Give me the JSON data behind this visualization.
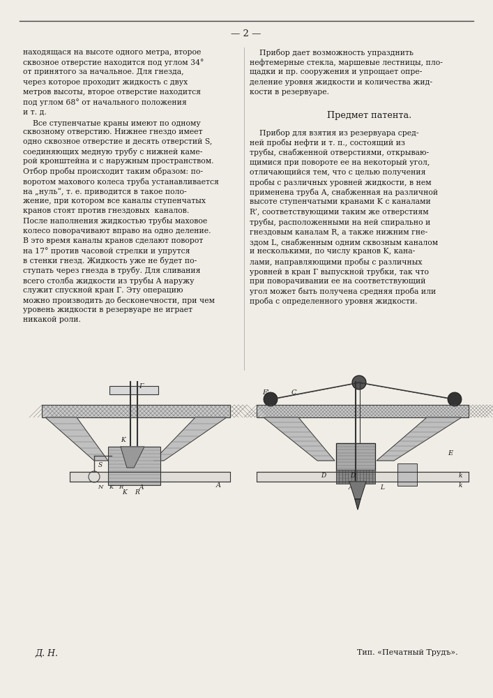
{
  "page_number": "— 2 —",
  "bg": "#f0ede6",
  "tc": "#1a1a1a",
  "left_col": [
    "находящася на высоте одного метра, второе",
    "сквозное отверстие находится под углом 34°",
    "от принятого за начальное. Для гнезда,",
    "через которое проходит жидкость с двух",
    "метров высоты, второе отверстие находится",
    "под углом 68° от начального положения",
    "и т. д.",
    "    Все ступенчатые краны имеют по одному",
    "сквозному отверстию. Нижнее гнездо имеет",
    "одно сквозное отверстие и десять отверстий S,",
    "соединяющих медную трубу с нижней каме-",
    "рой кронштейна и с наружным пространством.",
    "Отбор пробы происходит таким образом: по-",
    "воротом махового колеса труба устанавливается",
    "на „нуль“, т. е. приводится в такое поло-",
    "жение, при котором все каналы ступенчатых",
    "кранов стоят против гнездовых  каналов.",
    "После наполнения жидкостью трубы маховое",
    "колесо поворачивают вправо на одно деление.",
    "В это время каналы кранов сделают поворот",
    "на 17° против часовой стрелки и упрутся",
    "в стенки гнезд. Жидкость уже не будет по-",
    "ступать через гнезда в трубу. Для сливания",
    "всего столба жидкости из трубы A наружу",
    "служит спускной кран Г. Эту операцию",
    "можно производить до бесконечности, при чем",
    "уровень жидкости в резервуаре не играет",
    "никакой роли."
  ],
  "right_col_top": [
    "    Прибор дает возможность упразднить",
    "нефтемерные стекла, маршевые лестницы, пло-",
    "щадки и пр. сооружения и упрощает опре-",
    "деление уровня жидкости и количества жид-",
    "кости в резервуаре."
  ],
  "predmet": "Предмет патента.",
  "right_col_body": [
    "    Прибор для взятия из резервуара сред-",
    "ней пробы нефти и т. п., состоящий из",
    "трубы, снабженной отверстиями, открываю-",
    "щимися при повороте ее на некоторый угол,",
    "отличающийся тем, что с целью получения",
    "пробы с различных уровней жидкости, в нем",
    "применена труба A, снабженная на различной",
    "высоте ступенчатыми кранами K с каналами",
    "R’, соответствующими таким же отверстиям",
    "трубы, расположенными на ней спирально и",
    "гнездовым каналам R, а также нижним гне-",
    "здом L, снабженным одним сквозным каналом",
    "и несколькими, по числу кранов K, кана-",
    "лами, направляющими пробы с различных",
    "уровней в кран Г выпускной трубки, так что",
    "при поворачивании ее на соответствующий",
    "угол может быть получена средняя проба или",
    "проба с определенного уровня жидкости."
  ],
  "footer_left": "Д. Н.",
  "footer_right": "Тип. «Печатный Трудъ»."
}
